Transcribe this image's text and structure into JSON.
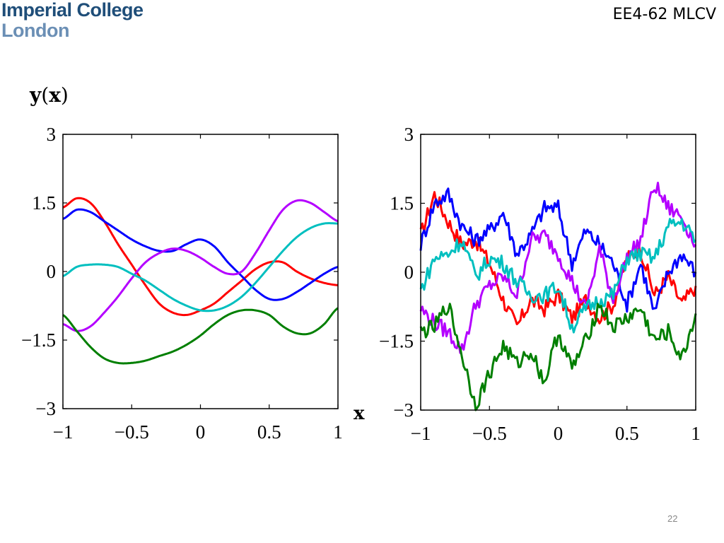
{
  "header": {
    "logo_line1": "Imperial College",
    "logo_line2": "London",
    "course": "EE4-62 MLCV"
  },
  "page_number": "22",
  "ylabel": {
    "bold": "y",
    "open": "(",
    "arg": "x",
    "close": ")"
  },
  "xlabel": "x",
  "colors": {
    "red": "#ff0000",
    "blue": "#0000ff",
    "magenta": "#b400ff",
    "cyan": "#00bfbf",
    "green": "#007f00"
  },
  "chart_data": [
    {
      "type": "line",
      "name": "smooth",
      "xlim": [
        -1,
        1
      ],
      "ylim": [
        -3,
        3
      ],
      "xticks": [
        -1,
        -0.5,
        0,
        0.5,
        1
      ],
      "xticklabels": [
        "−1",
        "−0.5",
        "0",
        "0.5",
        "1"
      ],
      "yticks": [
        3,
        1.5,
        0,
        -1.5,
        -3
      ],
      "yticklabels": [
        "3",
        "1.5",
        "0",
        "−1.5",
        "−3"
      ],
      "x": [
        -1,
        -0.9,
        -0.8,
        -0.7,
        -0.6,
        -0.5,
        -0.4,
        -0.3,
        -0.2,
        -0.1,
        0,
        0.1,
        0.2,
        0.3,
        0.4,
        0.5,
        0.6,
        0.7,
        0.8,
        0.9,
        1
      ],
      "series": [
        {
          "color": "#ff0000",
          "values": [
            1.4,
            1.6,
            1.5,
            1.1,
            0.6,
            0.15,
            -0.3,
            -0.7,
            -0.9,
            -0.95,
            -0.85,
            -0.7,
            -0.45,
            -0.2,
            0.05,
            0.2,
            0.2,
            0.0,
            -0.15,
            -0.25,
            -0.3
          ]
        },
        {
          "color": "#0000ff",
          "values": [
            1.15,
            1.35,
            1.3,
            1.1,
            0.9,
            0.7,
            0.55,
            0.45,
            0.45,
            0.6,
            0.7,
            0.55,
            0.2,
            -0.1,
            -0.4,
            -0.6,
            -0.6,
            -0.45,
            -0.25,
            -0.05,
            0.1
          ]
        },
        {
          "color": "#b400ff",
          "values": [
            -1.15,
            -1.3,
            -1.2,
            -0.9,
            -0.55,
            -0.15,
            0.2,
            0.4,
            0.5,
            0.45,
            0.3,
            0.1,
            -0.05,
            0.0,
            0.4,
            0.9,
            1.35,
            1.55,
            1.5,
            1.3,
            1.1
          ]
        },
        {
          "color": "#00bfbf",
          "values": [
            -0.1,
            0.1,
            0.15,
            0.15,
            0.1,
            -0.05,
            -0.2,
            -0.4,
            -0.6,
            -0.75,
            -0.85,
            -0.85,
            -0.75,
            -0.55,
            -0.25,
            0.1,
            0.45,
            0.75,
            0.95,
            1.05,
            1.05
          ]
        },
        {
          "color": "#007f00",
          "values": [
            -0.95,
            -1.3,
            -1.65,
            -1.9,
            -2.0,
            -2.0,
            -1.95,
            -1.85,
            -1.75,
            -1.6,
            -1.4,
            -1.15,
            -0.95,
            -0.85,
            -0.85,
            -0.95,
            -1.2,
            -1.35,
            -1.35,
            -1.15,
            -0.8
          ]
        }
      ]
    },
    {
      "type": "line",
      "name": "rough",
      "xlim": [
        -1,
        1
      ],
      "ylim": [
        -3,
        3
      ],
      "xticks": [
        -1,
        -0.5,
        0,
        0.5,
        1
      ],
      "xticklabels": [
        "−1",
        "−0.5",
        "0",
        "0.5",
        "1"
      ],
      "yticks": [
        3,
        1.5,
        0,
        -1.5,
        -3
      ],
      "yticklabels": [
        "3",
        "1.5",
        "0",
        "−1.5",
        "−3"
      ],
      "x": [
        -1,
        -0.9,
        -0.8,
        -0.7,
        -0.6,
        -0.5,
        -0.4,
        -0.3,
        -0.2,
        -0.1,
        0,
        0.1,
        0.2,
        0.3,
        0.4,
        0.5,
        0.6,
        0.7,
        0.8,
        0.9,
        1
      ],
      "series": [
        {
          "color": "#ff0000",
          "values": [
            0.8,
            1.7,
            1.1,
            0.6,
            0.7,
            0.2,
            -0.6,
            -1.2,
            -0.6,
            -0.8,
            -0.5,
            -1.0,
            -0.6,
            -1.0,
            -0.7,
            0.3,
            0.5,
            -0.5,
            -0.1,
            -0.7,
            -0.3
          ]
        },
        {
          "color": "#0000ff",
          "values": [
            0.6,
            1.5,
            1.7,
            1.0,
            0.7,
            0.9,
            1.3,
            0.4,
            0.8,
            1.4,
            1.4,
            0.2,
            0.9,
            0.6,
            0.2,
            -0.7,
            0.2,
            -0.9,
            0.0,
            0.4,
            0.0
          ]
        },
        {
          "color": "#b400ff",
          "values": [
            -0.8,
            -1.1,
            -1.3,
            -1.7,
            -0.7,
            -0.3,
            -0.1,
            -0.5,
            0.7,
            0.8,
            0.4,
            -0.2,
            -0.8,
            0.5,
            -0.6,
            0.3,
            0.7,
            1.9,
            1.4,
            1.2,
            0.6
          ]
        },
        {
          "color": "#00bfbf",
          "values": [
            -0.4,
            0.3,
            0.4,
            0.7,
            -0.1,
            0.3,
            0.2,
            -0.2,
            -0.5,
            -0.5,
            -0.3,
            -1.2,
            -0.8,
            -0.6,
            -0.5,
            0.3,
            0.4,
            0.3,
            1.0,
            1.1,
            0.7
          ]
        },
        {
          "color": "#007f00",
          "values": [
            -1.3,
            -1.2,
            -0.7,
            -1.8,
            -2.9,
            -2.2,
            -1.6,
            -2.0,
            -1.7,
            -2.4,
            -1.3,
            -2.1,
            -1.5,
            -0.7,
            -1.2,
            -1.0,
            -0.8,
            -1.5,
            -1.3,
            -1.9,
            -0.9
          ]
        }
      ]
    }
  ]
}
